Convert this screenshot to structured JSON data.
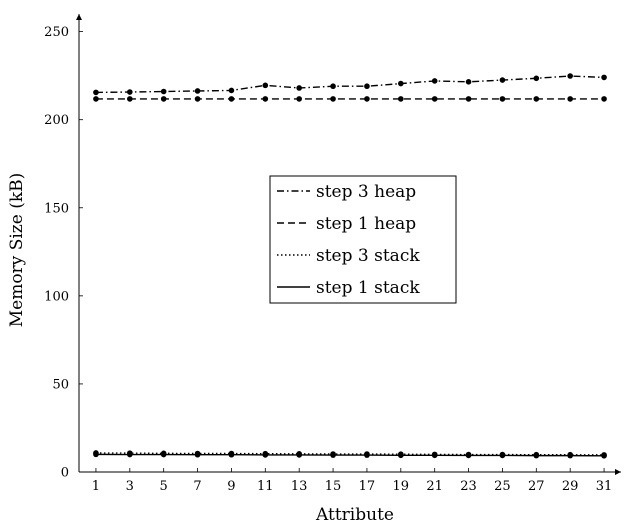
{
  "chart_data": {
    "type": "line",
    "xlabel": "Attribute",
    "ylabel": "Memory Size (kB)",
    "title": "",
    "x": [
      1,
      3,
      5,
      7,
      9,
      11,
      13,
      15,
      17,
      19,
      21,
      23,
      25,
      27,
      29,
      31
    ],
    "xlim": [
      0,
      32
    ],
    "ylim": [
      0,
      260
    ],
    "x_ticks": [
      "1",
      "3",
      "5",
      "7",
      "9",
      "11",
      "13",
      "15",
      "17",
      "19",
      "21",
      "23",
      "25",
      "27",
      "29",
      "31"
    ],
    "y_ticks": [
      "0",
      "50",
      "100",
      "150",
      "200",
      "250"
    ],
    "grid": false,
    "legend_position": "center",
    "series": [
      {
        "name": "step 3 heap",
        "dash": "dash-dot",
        "values": [
          215.5,
          215.7,
          216.0,
          216.3,
          216.6,
          219.5,
          218.0,
          219.0,
          219.0,
          220.5,
          222.0,
          221.5,
          222.5,
          223.5,
          224.8,
          224.0
        ]
      },
      {
        "name": "step 1 heap",
        "dash": "dashed",
        "values": [
          211.8,
          211.8,
          211.8,
          211.8,
          211.8,
          211.8,
          211.8,
          211.8,
          211.8,
          211.8,
          211.8,
          211.8,
          211.8,
          211.8,
          211.8,
          211.8
        ]
      },
      {
        "name": "step 3 stack",
        "dash": "dotted",
        "values": [
          10.8,
          10.7,
          10.6,
          10.5,
          10.5,
          10.4,
          10.3,
          10.2,
          10.2,
          10.1,
          10.0,
          9.9,
          9.9,
          9.8,
          9.8,
          9.7
        ]
      },
      {
        "name": "step 1 stack",
        "dash": "solid",
        "values": [
          10.0,
          9.9,
          9.9,
          9.8,
          9.8,
          9.7,
          9.7,
          9.6,
          9.6,
          9.5,
          9.5,
          9.4,
          9.4,
          9.3,
          9.3,
          9.2
        ]
      }
    ]
  }
}
